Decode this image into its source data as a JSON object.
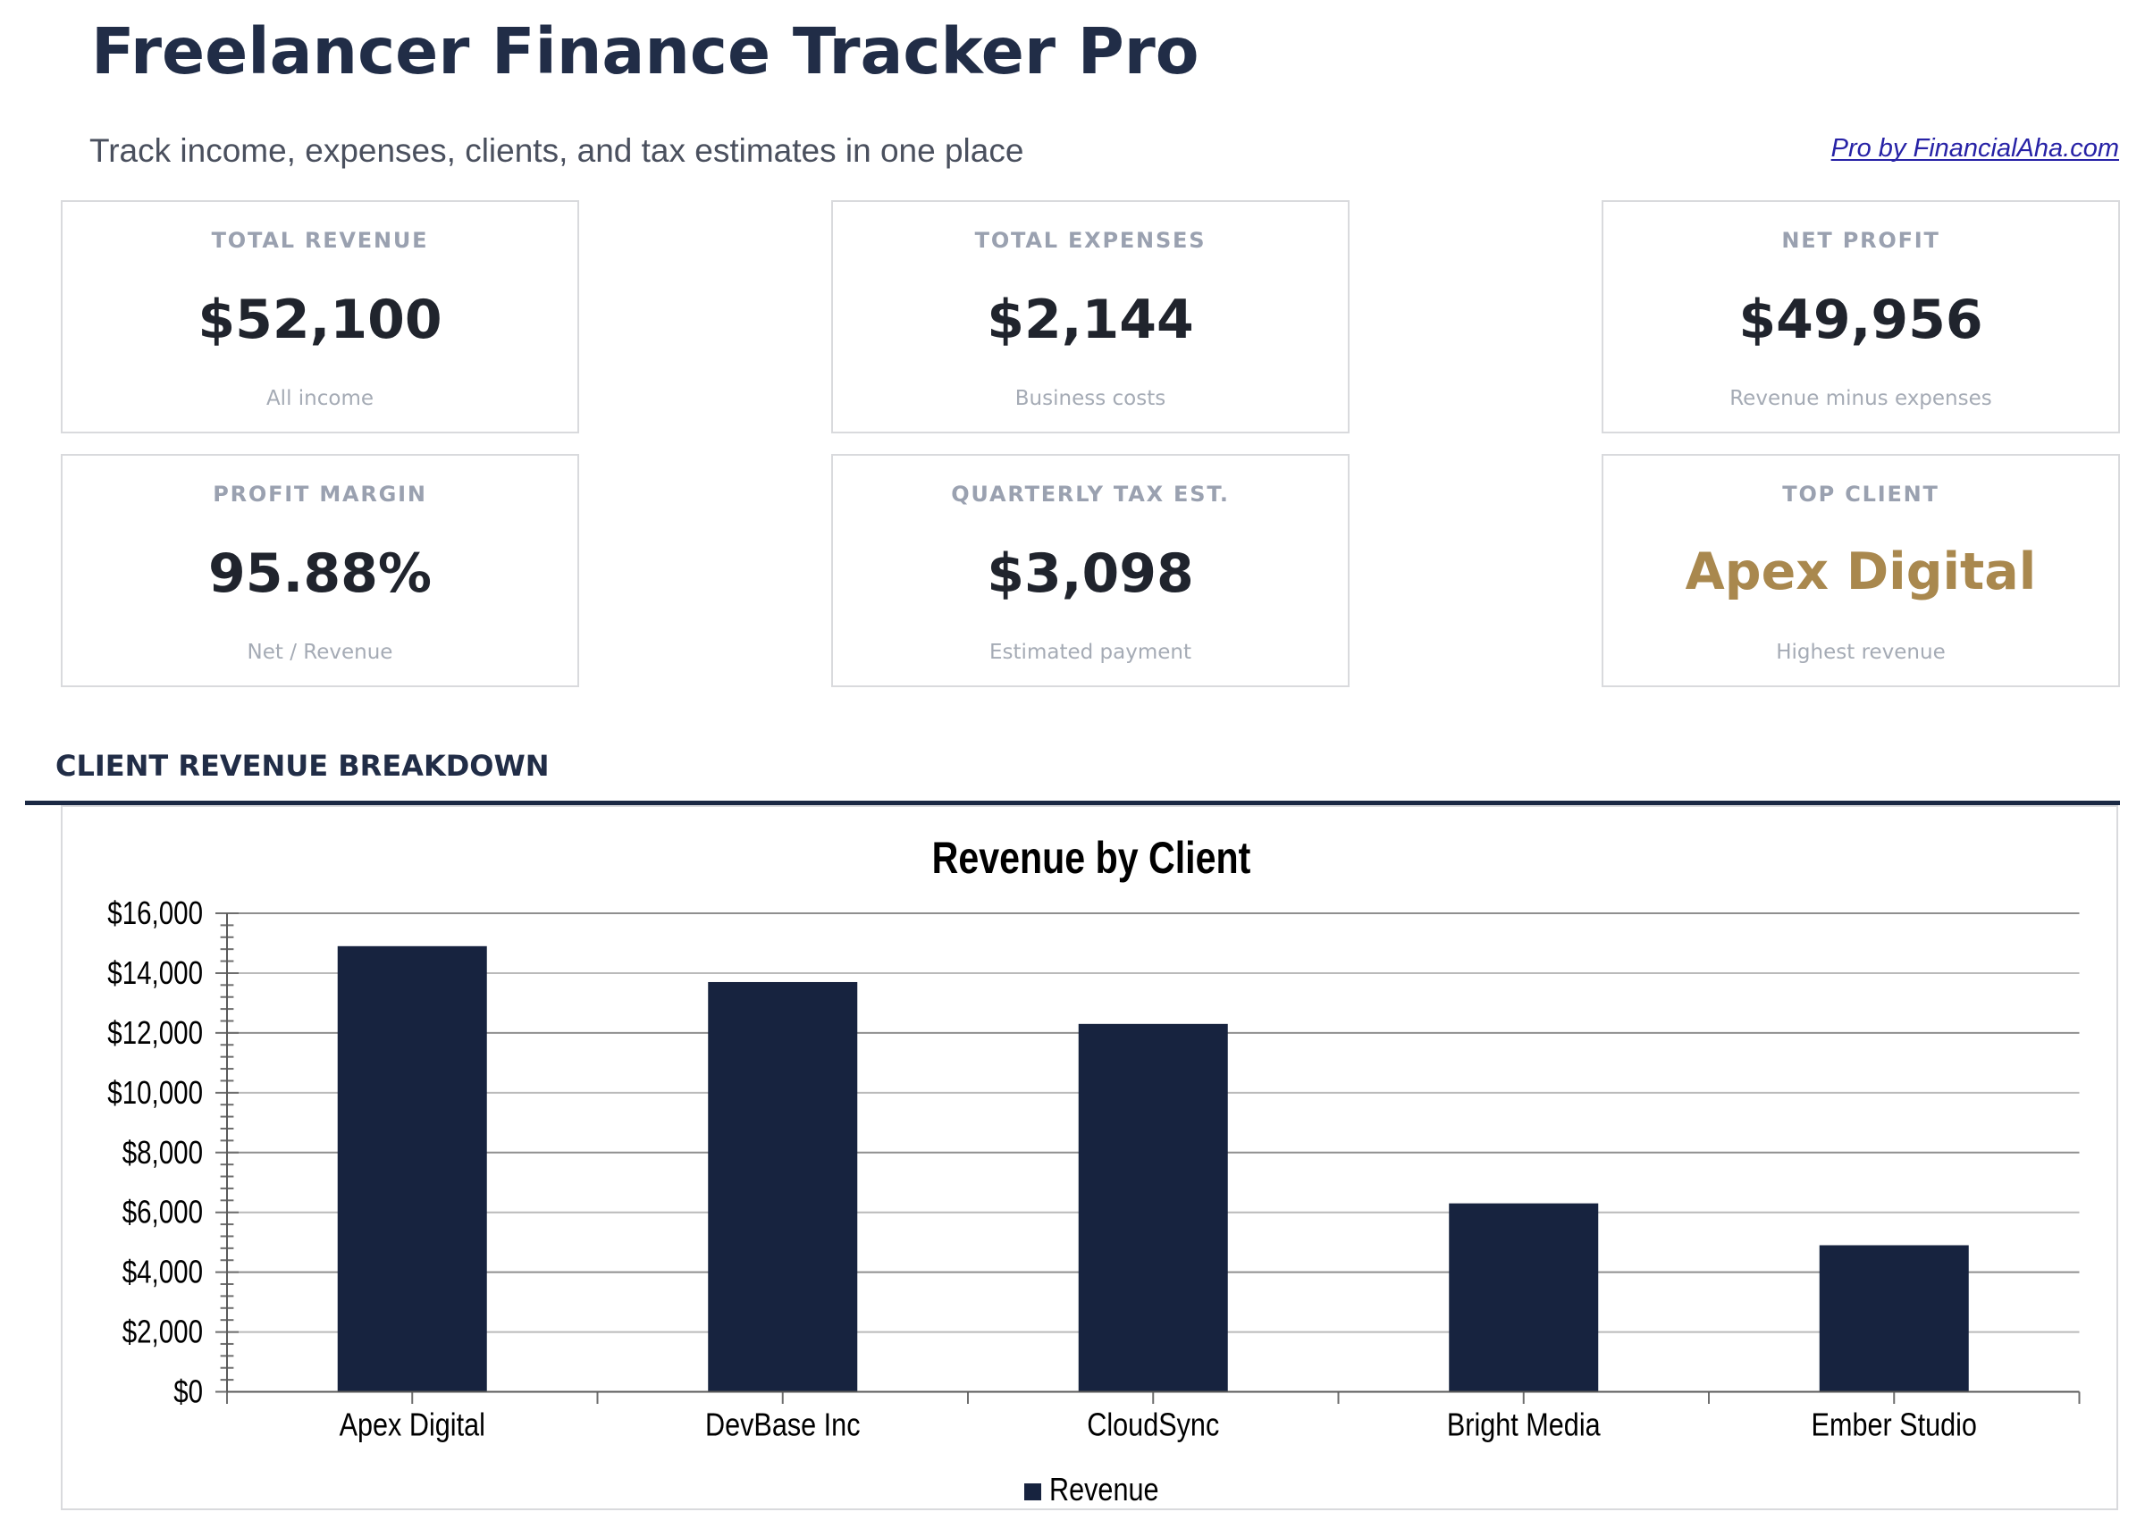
{
  "header": {
    "title": "Freelancer Finance Tracker Pro",
    "subtitle": "Track income, expenses, clients, and tax estimates in one place",
    "link_label": "Pro by FinancialAha.com"
  },
  "stats": {
    "cards": [
      {
        "label": "TOTAL REVENUE",
        "value": "$52,100",
        "sub": "All income"
      },
      {
        "label": "TOTAL EXPENSES",
        "value": "$2,144",
        "sub": "Business costs"
      },
      {
        "label": "NET PROFIT",
        "value": "$49,956",
        "sub": "Revenue minus expenses"
      },
      {
        "label": "PROFIT MARGIN",
        "value": "95.88%",
        "sub": "Net / Revenue"
      },
      {
        "label": "QUARTERLY TAX EST.",
        "value": "$3,098",
        "sub": "Estimated payment"
      },
      {
        "label": "TOP CLIENT",
        "value": "Apex Digital",
        "sub": "Highest revenue"
      }
    ]
  },
  "section": {
    "heading": "CLIENT REVENUE BREAKDOWN"
  },
  "chart_data": {
    "type": "bar",
    "title": "Revenue by Client",
    "categories": [
      "Apex Digital",
      "DevBase Inc",
      "CloudSync",
      "Bright Media",
      "Ember Studio"
    ],
    "values": [
      14900,
      13700,
      12300,
      6300,
      4900
    ],
    "series": [
      {
        "name": "Revenue",
        "values": [
          14900,
          13700,
          12300,
          6300,
          4900
        ]
      }
    ],
    "xlabel": "",
    "ylabel": "",
    "ylim": [
      0,
      16000
    ],
    "ytick_step": 2000,
    "ytick_minor_step": 400,
    "ytick_labels": [
      "$0",
      "$2,000",
      "$4,000",
      "$6,000",
      "$8,000",
      "$10,000",
      "$12,000",
      "$14,000",
      "$16,000"
    ],
    "grid": true,
    "legend": [
      "Revenue"
    ],
    "legend_position": "bottom"
  },
  "colors": {
    "navy": "#212D47",
    "gold": "#A9884E",
    "bar": "#17233F",
    "link": "#2823AE",
    "rule": "#1B2944",
    "grid_major": "#8F8F8F",
    "grid_light": "#BABABA",
    "axis": "#5A5A5A",
    "tick": "#6E6E6E",
    "chart_text": "#000000"
  }
}
